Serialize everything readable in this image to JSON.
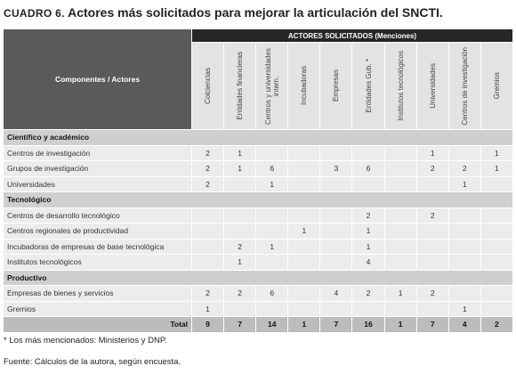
{
  "title_label": "CUADRO 6.",
  "title": "Actores más solicitados para mejorar la articulación del SNCTI.",
  "table": {
    "corner": "Componentes / Actores",
    "group_header": "ACTORES SOLICITADOS (Menciones)",
    "columns": [
      "Colciencias",
      "Entidades financieras",
      "Centros y universidades intern.",
      "Incubadoras",
      "Empresas",
      "Entidades Gub. *",
      "Institutos tecnológicos",
      "Universidades",
      "Centros de investigación",
      "Gremios"
    ],
    "sections": [
      {
        "name": "Científico y académico",
        "rows": [
          {
            "label": "Centros de investigación",
            "cells": [
              2,
              1,
              null,
              null,
              null,
              null,
              null,
              1,
              null,
              1
            ]
          },
          {
            "label": "Grupos de investigación",
            "cells": [
              2,
              1,
              6,
              null,
              3,
              6,
              null,
              2,
              2,
              1
            ]
          },
          {
            "label": "Universidades",
            "cells": [
              2,
              null,
              1,
              null,
              null,
              null,
              null,
              null,
              1,
              null
            ]
          }
        ]
      },
      {
        "name": "Tecnológico",
        "rows": [
          {
            "label": "Centros de desarrollo tecnológico",
            "cells": [
              null,
              null,
              null,
              null,
              null,
              2,
              null,
              2,
              null,
              null
            ]
          },
          {
            "label": "Centros regionales de productividad",
            "cells": [
              null,
              null,
              null,
              1,
              null,
              1,
              null,
              null,
              null,
              null
            ]
          },
          {
            "label": "Incubadoras de empresas de base tecnológica",
            "cells": [
              null,
              2,
              1,
              null,
              null,
              1,
              null,
              null,
              null,
              null
            ]
          },
          {
            "label": "Institutos tecnológicos",
            "cells": [
              null,
              1,
              null,
              null,
              null,
              4,
              null,
              null,
              null,
              null
            ]
          }
        ]
      },
      {
        "name": "Productivo",
        "rows": [
          {
            "label": "Empresas de bienes y servicios",
            "cells": [
              2,
              2,
              6,
              null,
              4,
              2,
              1,
              2,
              null,
              null
            ]
          },
          {
            "label": "Gremios",
            "cells": [
              1,
              null,
              null,
              null,
              null,
              null,
              null,
              null,
              1,
              null
            ]
          }
        ]
      }
    ],
    "total": {
      "label": "Total",
      "cells": [
        9,
        7,
        14,
        1,
        7,
        16,
        1,
        7,
        4,
        2
      ]
    }
  },
  "footnotes": [
    "* Los más mencionados: Ministerios y DNP.",
    "Fuente: Cálculos de la autora, según encuesta."
  ]
}
